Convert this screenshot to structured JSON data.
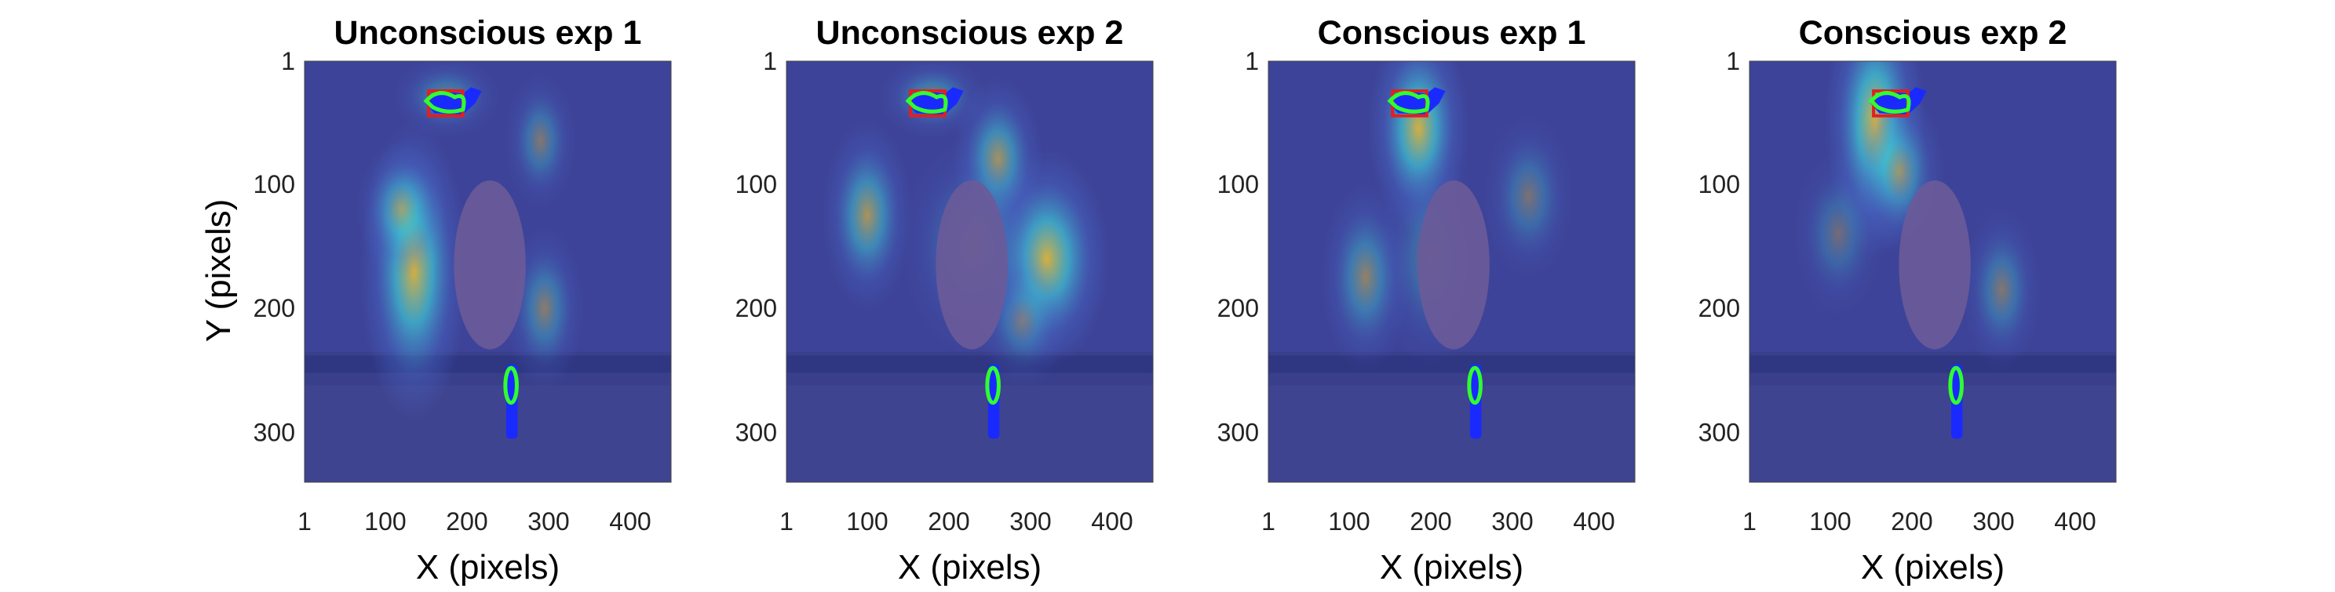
{
  "figure": {
    "colors": {
      "background": "#3a3f8c",
      "heat_low": "#4a6fd0",
      "heat_mid": "#3fd0d8",
      "heat_high": "#f0c030",
      "occluder": "#6a5a99",
      "roi_red": "#e02020",
      "roi_green": "#30ff30",
      "roi_blue": "#1a2aff"
    },
    "xlabel": "X (pixels)",
    "ylabel": "Y (pixels)"
  },
  "chart_data": [
    {
      "type": "heatmap",
      "title": "Unconscious exp 1",
      "xlabel": "X (pixels)",
      "ylabel": "Y (pixels)",
      "xlim": [
        1,
        450
      ],
      "ylim": [
        1,
        340
      ],
      "xticks": [
        "1",
        "100",
        "200",
        "300",
        "400"
      ],
      "yticks": [
        "1",
        "100",
        "200",
        "300"
      ],
      "grid": false,
      "hotspots": [
        {
          "x": 135,
          "y": 170,
          "intensity": 0.95,
          "sx": 30,
          "sy": 55
        },
        {
          "x": 120,
          "y": 120,
          "intensity": 0.6,
          "sx": 25,
          "sy": 25
        },
        {
          "x": 295,
          "y": 200,
          "intensity": 0.5,
          "sx": 22,
          "sy": 30
        },
        {
          "x": 290,
          "y": 65,
          "intensity": 0.45,
          "sx": 20,
          "sy": 25
        },
        {
          "x": 175,
          "y": 30,
          "intensity": 0.45,
          "sx": 30,
          "sy": 15
        }
      ]
    },
    {
      "type": "heatmap",
      "title": "Unconscious exp 2",
      "xlabel": "X (pixels)",
      "xlim": [
        1,
        450
      ],
      "ylim": [
        1,
        340
      ],
      "xticks": [
        "1",
        "100",
        "200",
        "300",
        "400"
      ],
      "yticks": [
        "1",
        "100",
        "200",
        "300"
      ],
      "grid": false,
      "hotspots": [
        {
          "x": 320,
          "y": 160,
          "intensity": 0.95,
          "sx": 35,
          "sy": 40
        },
        {
          "x": 100,
          "y": 125,
          "intensity": 0.7,
          "sx": 25,
          "sy": 35
        },
        {
          "x": 260,
          "y": 80,
          "intensity": 0.7,
          "sx": 25,
          "sy": 30
        },
        {
          "x": 290,
          "y": 210,
          "intensity": 0.4,
          "sx": 25,
          "sy": 25
        },
        {
          "x": 180,
          "y": 30,
          "intensity": 0.5,
          "sx": 30,
          "sy": 15
        },
        {
          "x": 230,
          "y": 150,
          "intensity": 0.4,
          "sx": 40,
          "sy": 40
        }
      ]
    },
    {
      "type": "heatmap",
      "title": "Conscious exp 1",
      "xlabel": "X (pixels)",
      "xlim": [
        1,
        450
      ],
      "ylim": [
        1,
        340
      ],
      "xticks": [
        "1",
        "100",
        "200",
        "300",
        "400"
      ],
      "yticks": [
        "1",
        "100",
        "200",
        "300"
      ],
      "grid": false,
      "hotspots": [
        {
          "x": 185,
          "y": 55,
          "intensity": 0.95,
          "sx": 28,
          "sy": 40
        },
        {
          "x": 120,
          "y": 175,
          "intensity": 0.55,
          "sx": 25,
          "sy": 35
        },
        {
          "x": 320,
          "y": 110,
          "intensity": 0.4,
          "sx": 25,
          "sy": 30
        },
        {
          "x": 200,
          "y": 160,
          "intensity": 0.35,
          "sx": 30,
          "sy": 40
        }
      ]
    },
    {
      "type": "heatmap",
      "title": "Conscious exp 2",
      "xlabel": "X (pixels)",
      "xlim": [
        1,
        450
      ],
      "ylim": [
        1,
        340
      ],
      "xticks": [
        "1",
        "100",
        "200",
        "300",
        "400"
      ],
      "yticks": [
        "1",
        "100",
        "200",
        "300"
      ],
      "grid": false,
      "hotspots": [
        {
          "x": 155,
          "y": 50,
          "intensity": 1.0,
          "sx": 28,
          "sy": 50
        },
        {
          "x": 185,
          "y": 90,
          "intensity": 0.6,
          "sx": 25,
          "sy": 30
        },
        {
          "x": 310,
          "y": 185,
          "intensity": 0.45,
          "sx": 22,
          "sy": 30
        },
        {
          "x": 110,
          "y": 140,
          "intensity": 0.35,
          "sx": 25,
          "sy": 30
        }
      ]
    }
  ]
}
